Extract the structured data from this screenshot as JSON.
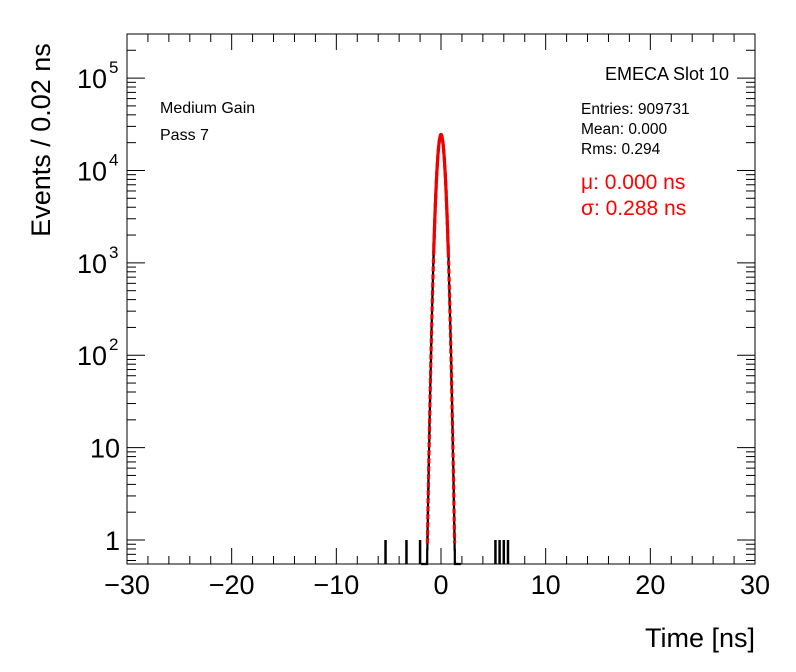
{
  "chart_data": {
    "type": "histogram",
    "y_scale": "log",
    "xlabel": "Time [ns]",
    "ylabel": "Events / 0.02 ns",
    "xlim": [
      -30,
      30
    ],
    "ylim": [
      0.55,
      300000
    ],
    "x_ticks": [
      -30,
      -20,
      -10,
      0,
      10,
      20,
      30
    ],
    "x_tick_labels": [
      "−30",
      "−20",
      "−10",
      "0",
      "10",
      "20",
      "30"
    ],
    "y_ticks": [
      {
        "value": 1,
        "label": "1",
        "exp": ""
      },
      {
        "value": 10,
        "label": "10",
        "exp": ""
      },
      {
        "value": 100,
        "label": "10",
        "exp": "2"
      },
      {
        "value": 1000,
        "label": "10",
        "exp": "3"
      },
      {
        "value": 10000,
        "label": "10",
        "exp": "4"
      },
      {
        "value": 100000,
        "label": "10",
        "exp": "5"
      }
    ],
    "grid": false,
    "title": "EMECA Slot 10",
    "annotations_left": [
      "Medium Gain",
      "Pass 7"
    ],
    "stats": [
      "Entries: 909731",
      "Mean: 0.000",
      "Rms: 0.294"
    ],
    "fit_labels": [
      "μ: 0.000 ns",
      "σ: 0.288 ns"
    ],
    "fit": {
      "mean": 0.0,
      "sigma": 0.288,
      "amplitude": 24500
    },
    "entries": 909731,
    "mean": 0.0,
    "rms": 0.294,
    "outlier_bins": [
      {
        "x": -5.3,
        "count": 1
      },
      {
        "x": -3.3,
        "count": 1
      },
      {
        "x": -2.0,
        "count": 1
      },
      {
        "x": 5.2,
        "count": 1
      },
      {
        "x": 5.6,
        "count": 1
      },
      {
        "x": 6.0,
        "count": 1
      },
      {
        "x": 6.4,
        "count": 1
      }
    ],
    "colors": {
      "histogram": "#000000",
      "fit": "#ee0000",
      "fit_text": "#ff0000"
    }
  }
}
